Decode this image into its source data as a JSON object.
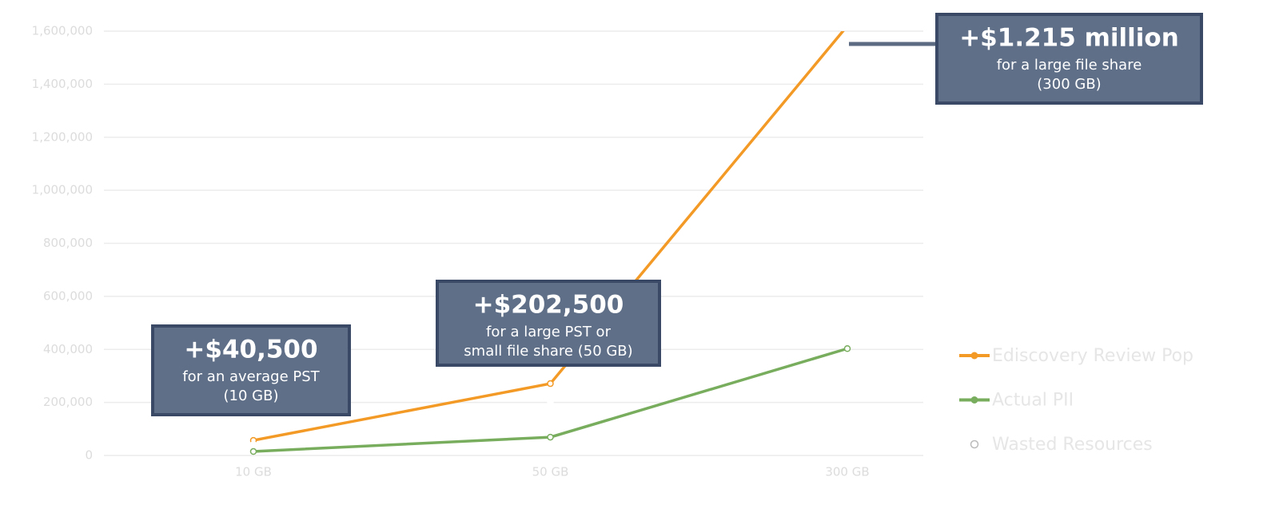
{
  "chart_data": {
    "type": "line",
    "categories": [
      "10 GB",
      "50 GB",
      "300 GB"
    ],
    "series": [
      {
        "name": "Ediscovery Review Pop",
        "color": "#f39a26",
        "values": [
          57000,
          271000,
          1620000
        ]
      },
      {
        "name": "Actual PII",
        "color": "#78ad5e",
        "values": [
          15000,
          69000,
          403000
        ]
      },
      {
        "name": "Wasted Resources",
        "color": "#ffffff",
        "values": [
          42000,
          202000,
          1217000
        ]
      }
    ],
    "ylim": [
      0,
      1600000
    ],
    "yticks": [
      0,
      {
        "value": 200000,
        "label": "200,000"
      },
      {
        "value": 400000,
        "label": "400,000"
      },
      {
        "value": 600000,
        "label": "600,000"
      },
      {
        "value": 800000,
        "label": "800,000"
      },
      {
        "value": 1000000,
        "label": "1,000,000"
      },
      {
        "value": 1200000,
        "label": "1,200,000"
      },
      {
        "value": 1400000,
        "label": "1,400,000"
      },
      {
        "value": 1600000,
        "label": "1,600,000"
      }
    ],
    "grid": true,
    "legend": "right",
    "annotations": [
      {
        "title": "+$40,500",
        "lines": [
          "for an average PST",
          "(10 GB)"
        ]
      },
      {
        "title": "+$202,500",
        "lines": [
          "for a large PST or",
          "small file share (50 GB)"
        ]
      },
      {
        "title": "+$1.215 million",
        "lines": [
          "for a large file share",
          "(300 GB)"
        ]
      }
    ]
  }
}
